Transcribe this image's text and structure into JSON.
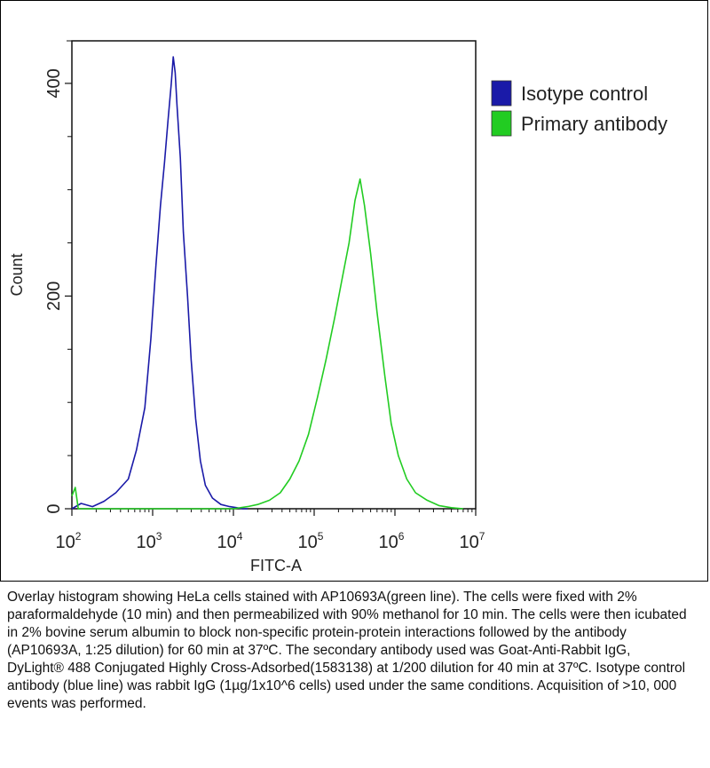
{
  "chart_data": {
    "type": "line",
    "xlabel": "FITC-A",
    "ylabel": "Count",
    "x_scale": "log",
    "xlim": [
      100,
      10000000
    ],
    "ylim": [
      0,
      440
    ],
    "x_ticks": [
      {
        "base": "10",
        "exp": "2",
        "value": 100
      },
      {
        "base": "10",
        "exp": "3",
        "value": 1000
      },
      {
        "base": "10",
        "exp": "4",
        "value": 10000
      },
      {
        "base": "10",
        "exp": "5",
        "value": 100000
      },
      {
        "base": "10",
        "exp": "6",
        "value": 1000000
      },
      {
        "base": "10",
        "exp": "7",
        "value": 10000000
      }
    ],
    "y_ticks": [
      "0",
      "200",
      "400"
    ],
    "y_tick_values": [
      0,
      200,
      400
    ],
    "legend_position": "top-right",
    "series": [
      {
        "name": "Isotype control",
        "color": "#1a1aa8",
        "x": [
          100,
          130,
          180,
          250,
          350,
          500,
          630,
          800,
          950,
          1100,
          1250,
          1400,
          1550,
          1700,
          1800,
          1900,
          2000,
          2200,
          2400,
          2700,
          3000,
          3400,
          3900,
          4500,
          5500,
          7000,
          9000,
          11000,
          13000,
          15000
        ],
        "y": [
          0,
          5,
          2,
          7,
          15,
          28,
          55,
          95,
          160,
          230,
          285,
          325,
          365,
          400,
          425,
          410,
          380,
          330,
          260,
          200,
          140,
          85,
          45,
          22,
          10,
          4,
          2,
          1,
          0,
          0
        ]
      },
      {
        "name": "Primary antibody",
        "color": "#22cc22",
        "x": [
          100,
          110,
          120,
          200,
          1000,
          10000,
          15000,
          20000,
          28000,
          38000,
          50000,
          65000,
          85000,
          110000,
          140000,
          180000,
          220000,
          270000,
          320000,
          370000,
          420000,
          500000,
          600000,
          750000,
          900000,
          1100000,
          1400000,
          1800000,
          2500000,
          3500000,
          5000000,
          7000000
        ],
        "y": [
          12,
          20,
          0,
          0,
          0,
          0,
          2,
          4,
          8,
          15,
          28,
          45,
          70,
          105,
          140,
          180,
          215,
          250,
          290,
          310,
          285,
          240,
          185,
          125,
          80,
          50,
          28,
          15,
          8,
          3,
          1,
          0
        ]
      }
    ]
  },
  "caption": "Overlay histogram showing HeLa cells stained with AP10693A(green line). The cells were fixed with 2% paraformaldehyde (10 min) and then permeabilized with 90% methanol for 10 min. The cells were then icubated in 2% bovine serum albumin to block non-specific protein-protein interactions followed by the antibody (AP10693A, 1:25 dilution) for 60 min at 37ºC. The secondary antibody used was Goat-Anti-Rabbit IgG, DyLight® 488 Conjugated Highly Cross-Adsorbed(1583138) at 1/200 dilution for 40 min at 37ºC. Isotype control antibody (blue line) was rabbit IgG (1µg/1x10^6 cells) used under the same conditions. Acquisition of >10, 000 events was performed."
}
